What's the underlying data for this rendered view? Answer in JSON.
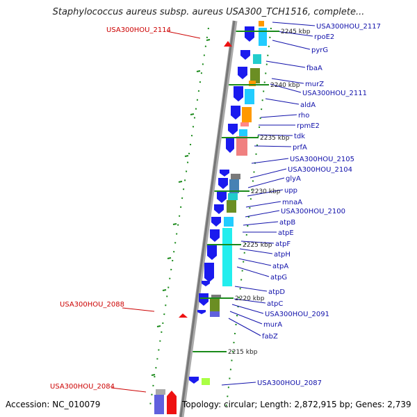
{
  "title": "Staphylococcus aureus subsp. aureus USA300_TCH1516, complete...",
  "accession_text": "Accession: NC_010079",
  "topology_text": "Topology: circular; Length: 2,872,915 bp; Genes: 2,739",
  "colors": {
    "label_blue": "#1010aa",
    "label_red": "#cc0000",
    "backbone": "#888888",
    "tick_green": "#1a8a1a"
  },
  "ruler": [
    {
      "label": "2245 kbp"
    },
    {
      "label": "2240 kbp"
    },
    {
      "label": "2235 kbp"
    },
    {
      "label": "2230 kbp"
    },
    {
      "label": "2225 kbp"
    },
    {
      "label": "2220 kbp"
    },
    {
      "label": "2215 kbp"
    }
  ],
  "right_labels": [
    "USA300HOU_2117",
    "rpoE2",
    "pyrG",
    "fbaA",
    "murZ",
    "USA300HOU_2111",
    "aldA",
    "rho",
    "rpmE2",
    "tdk",
    "prfA",
    "USA300HOU_2105",
    "USA300HOU_2104",
    "glyA",
    "upp",
    "mnaA",
    "USA300HOU_2100",
    "atpB",
    "atpE",
    "atpF",
    "atpH",
    "atpA",
    "atpG",
    "atpD",
    "atpC",
    "USA300HOU_2091",
    "murA",
    "fabZ",
    "USA300HOU_2087"
  ],
  "left_labels": [
    "USA300HOU_2114",
    "USA300HOU_2088",
    "USA300HOU_2084"
  ]
}
